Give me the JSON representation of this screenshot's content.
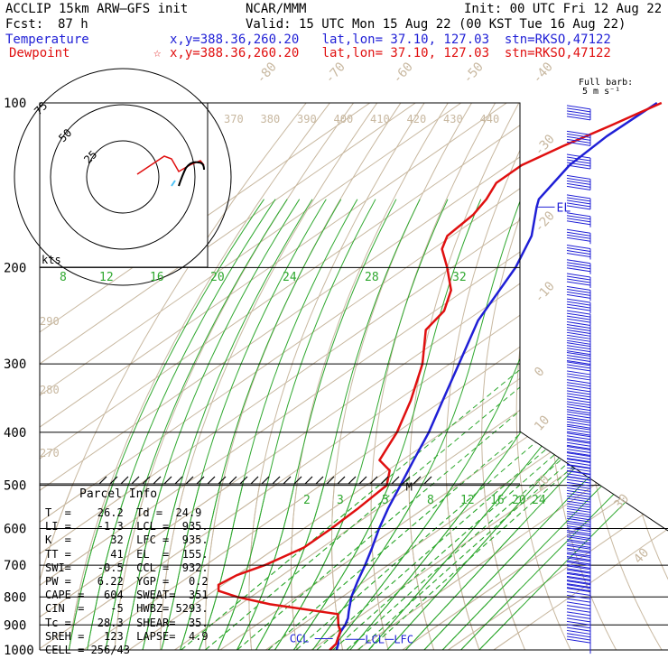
{
  "header": {
    "model": "ACCLIP 15km ARW–GFS init",
    "fcst_label": "Fcst:",
    "fcst_value": "87 h",
    "source": "NCAR/MMM",
    "init": "Init: 00 UTC Fri 12 Aug 22",
    "valid": "Valid: 15 UTC Mon 15 Aug 22 (00 KST Tue 16 Aug 22)",
    "temperature_label": "Temperature",
    "temperature_loc": "x,y=388.36,260.20   lat,lon= 37.10, 127.03  stn=RKSO,47122",
    "dewpoint_label": "Dewpoint",
    "dewpoint_loc": "x,y=388.36,260.20   lat,lon= 37.10, 127.03  stn=RKSO,47122",
    "dewpoint_marker": "☆",
    "barb_note_1": "Full barb:",
    "barb_note_2": "5 m s⁻¹"
  },
  "parcel_info": {
    "title": "Parcel Info",
    "rows": [
      "T  =    26.2  Td =  24.9",
      "LI =    -1.3  LCL =  935.",
      "K  =      32  LFC =  935.",
      "TT =      41  EL  =  155.",
      "SWI=    -0.5  CCL =  932.",
      "PW =    6.22  YGP =   0.2",
      "CAPE =   604  SWEAT=  351",
      "CIN  =    -5  HWBZ= 5293.",
      "Tc =    28.3  SHEAR=  35.",
      "SREH =   123  LAPSE=  4.9",
      "CELL = 256/43"
    ]
  },
  "colors": {
    "temperature": "#1f1fd6",
    "dewpoint": "#e01010",
    "isotherm": "#c8b8a0",
    "adiabat": "#2fa82f",
    "isobar": "#000000"
  },
  "chart_data": {
    "type": "line",
    "title": "",
    "y_axis": "Pressure (hPa), log scale",
    "ylim": [
      1000,
      100
    ],
    "xlim": [
      -40,
      40
    ],
    "pressure_ticks": [
      100,
      200,
      300,
      400,
      500,
      600,
      700,
      800,
      900,
      1000
    ],
    "isotherm_labels": [
      -80,
      -70,
      -60,
      -50,
      -40,
      -30,
      -20,
      -10,
      0,
      10,
      20,
      30,
      40
    ],
    "theta_labels": [
      370,
      380,
      390,
      400,
      410,
      420,
      430,
      440
    ],
    "theta_left_labels": [
      290,
      280,
      270
    ],
    "mixing_ratio_labels_upper": [
      8,
      12,
      16,
      20,
      24,
      28,
      32
    ],
    "mixing_ratio_labels_lower": [
      2,
      3,
      5,
      8,
      12,
      16,
      20,
      24
    ],
    "series": [
      {
        "name": "Temperature",
        "color": "#1f1fd6",
        "points": [
          [
            1000,
            25.5
          ],
          [
            975,
            24.0
          ],
          [
            950,
            22.0
          ],
          [
            925,
            20.6
          ],
          [
            900,
            19.5
          ],
          [
            875,
            18.0
          ],
          [
            850,
            16.0
          ],
          [
            800,
            12.0
          ],
          [
            750,
            8.5
          ],
          [
            700,
            5.0
          ],
          [
            650,
            1.0
          ],
          [
            600,
            -3.5
          ],
          [
            550,
            -8.0
          ],
          [
            500,
            -12.5
          ],
          [
            450,
            -17.5
          ],
          [
            400,
            -23.0
          ],
          [
            350,
            -30.0
          ],
          [
            300,
            -38.0
          ],
          [
            250,
            -47.5
          ],
          [
            200,
            -56.0
          ],
          [
            175,
            -62.5
          ],
          [
            155,
            -70.5
          ],
          [
            150,
            -72.5
          ],
          [
            130,
            -76.5
          ],
          [
            115,
            -77.5
          ],
          [
            100,
            -77.0
          ]
        ]
      },
      {
        "name": "Dewpoint",
        "color": "#e01010",
        "points": [
          [
            1000,
            24.0
          ],
          [
            975,
            23.5
          ],
          [
            950,
            22.0
          ],
          [
            925,
            20.5
          ],
          [
            900,
            18.0
          ],
          [
            860,
            14.5
          ],
          [
            825,
            -3.5
          ],
          [
            800,
            -13.0
          ],
          [
            780,
            -19.0
          ],
          [
            760,
            -21.0
          ],
          [
            730,
            -20.0
          ],
          [
            700,
            -17.0
          ],
          [
            650,
            -14.0
          ],
          [
            600,
            -14.0
          ],
          [
            550,
            -14.5
          ],
          [
            500,
            -15.5
          ],
          [
            470,
            -19.5
          ],
          [
            450,
            -25.0
          ],
          [
            400,
            -30.0
          ],
          [
            350,
            -37.0
          ],
          [
            300,
            -46.0
          ],
          [
            260,
            -56.0
          ],
          [
            240,
            -58.0
          ],
          [
            220,
            -63.0
          ],
          [
            200,
            -71.0
          ],
          [
            185,
            -78.0
          ],
          [
            175,
            -81.0
          ],
          [
            160,
            -82.0
          ],
          [
            150,
            -84.0
          ],
          [
            140,
            -87.0
          ],
          [
            130,
            -87.0
          ],
          [
            120,
            -84.0
          ],
          [
            110,
            -80.0
          ],
          [
            100,
            -76.0
          ]
        ]
      }
    ],
    "parcel_levels": [
      {
        "label": "EL",
        "p": 155
      },
      {
        "label": "CCL",
        "p": 932
      },
      {
        "label": "LCL",
        "p": 935
      },
      {
        "label": "LFC",
        "p": 935
      },
      {
        "label": "M",
        "p": 500
      }
    ],
    "hodograph": {
      "rings_kts": [
        25,
        50,
        75
      ],
      "label": "kts"
    },
    "wind_barbs": "right edge, 100 to 1000 hPa"
  }
}
